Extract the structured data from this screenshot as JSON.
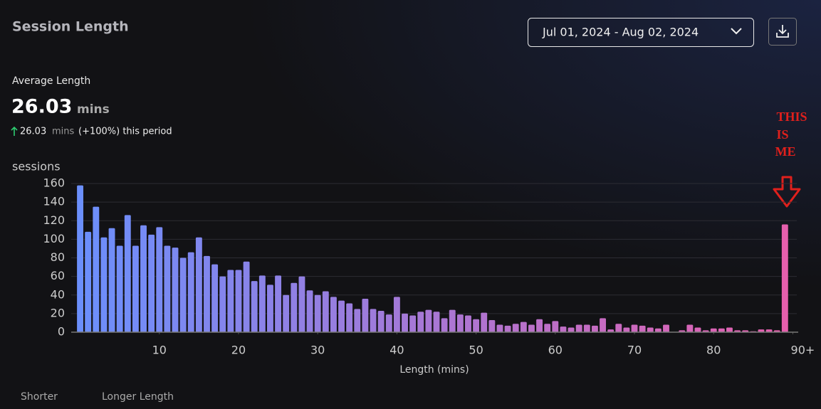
{
  "header": {
    "title": "Session Length",
    "date_range": "Jul 01, 2024 - Aug 02, 2024"
  },
  "summary": {
    "label": "Average Length",
    "value": "26.03",
    "unit": "mins",
    "change_value": "26.03",
    "change_unit": "mins",
    "change_text": "(+100%) this period"
  },
  "annotation": {
    "lines": [
      "THIS",
      "IS",
      "ME"
    ]
  },
  "legend": {
    "start": "Shorter",
    "end": "Longer Length"
  },
  "chart_data": {
    "type": "bar",
    "ylabel": "sessions",
    "xlabel": "Length (mins)",
    "x": [
      0,
      1,
      2,
      3,
      4,
      5,
      6,
      7,
      8,
      9,
      10,
      11,
      12,
      13,
      14,
      15,
      16,
      17,
      18,
      19,
      20,
      21,
      22,
      23,
      24,
      25,
      26,
      27,
      28,
      29,
      30,
      31,
      32,
      33,
      34,
      35,
      36,
      37,
      38,
      39,
      40,
      41,
      42,
      43,
      44,
      45,
      46,
      47,
      48,
      49,
      50,
      51,
      52,
      53,
      54,
      55,
      56,
      57,
      58,
      59,
      60,
      61,
      62,
      63,
      64,
      65,
      66,
      67,
      68,
      69,
      70,
      71,
      72,
      73,
      74,
      75,
      76,
      77,
      78,
      79,
      80,
      81,
      82,
      83,
      84,
      85,
      86,
      87,
      88,
      89
    ],
    "values": [
      158,
      108,
      135,
      102,
      112,
      93,
      126,
      93,
      115,
      105,
      113,
      93,
      91,
      80,
      86,
      102,
      82,
      73,
      60,
      67,
      67,
      76,
      55,
      61,
      51,
      61,
      40,
      53,
      60,
      45,
      40,
      44,
      38,
      34,
      31,
      25,
      36,
      25,
      23,
      19,
      38,
      20,
      18,
      22,
      24,
      22,
      15,
      24,
      19,
      18,
      14,
      21,
      13,
      8,
      7,
      9,
      11,
      8,
      14,
      9,
      12,
      6,
      5,
      8,
      8,
      7,
      15,
      3,
      9,
      5,
      8,
      7,
      5,
      4,
      8,
      0,
      2,
      8,
      5,
      2,
      4,
      4,
      5,
      2,
      2,
      1,
      3,
      3,
      2,
      116
    ],
    "colors": [
      "#6b8ffc",
      "#e65fad"
    ],
    "xlim": [
      -0.5,
      90.5
    ],
    "xticks": [
      10,
      20,
      30,
      40,
      50,
      60,
      70,
      80,
      {
        "value": 90,
        "label": "90+"
      }
    ],
    "ylim": [
      0,
      160
    ],
    "yticks": [
      0,
      20,
      40,
      60,
      80,
      100,
      120,
      140,
      160
    ],
    "grid": true
  }
}
